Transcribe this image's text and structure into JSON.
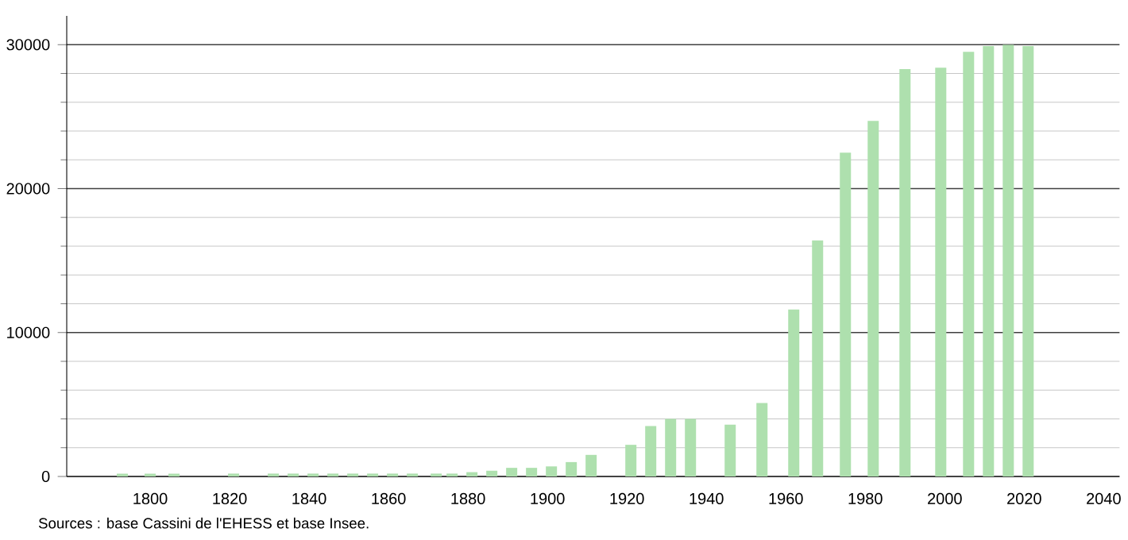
{
  "chart_data": {
    "type": "bar",
    "x": [
      1793,
      1800,
      1806,
      1821,
      1831,
      1836,
      1841,
      1846,
      1851,
      1856,
      1861,
      1866,
      1872,
      1876,
      1881,
      1886,
      1891,
      1896,
      1901,
      1906,
      1911,
      1921,
      1926,
      1931,
      1936,
      1946,
      1954,
      1962,
      1968,
      1975,
      1982,
      1990,
      1999,
      2006,
      2011,
      2016,
      2021
    ],
    "values": [
      200,
      200,
      200,
      200,
      200,
      200,
      200,
      200,
      200,
      200,
      200,
      200,
      200,
      200,
      300,
      400,
      600,
      600,
      700,
      1000,
      1500,
      2200,
      3500,
      4000,
      4000,
      3600,
      5100,
      11600,
      16400,
      22500,
      24700,
      28300,
      28400,
      29500,
      29900,
      30000,
      29900
    ],
    "color": "#aee0ae",
    "xlim": [
      1779,
      2044
    ],
    "xticks": [
      1800,
      1820,
      1840,
      1860,
      1880,
      1900,
      1920,
      1940,
      1960,
      1980,
      2000,
      2020,
      2040
    ],
    "ylim": [
      0,
      32000
    ],
    "yticks": [
      0,
      10000,
      20000,
      30000
    ],
    "grid": "y",
    "annotations": [
      "Sources : base Cassini de l'EHESS et base Insee."
    ]
  }
}
